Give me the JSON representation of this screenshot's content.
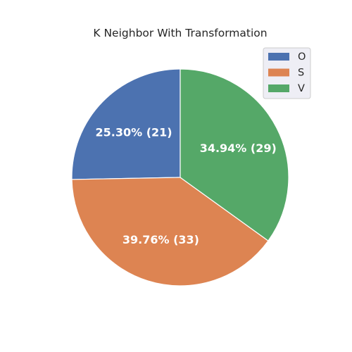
{
  "chart_data": {
    "type": "pie",
    "title": "K Neighbor With Transformation",
    "slices": [
      {
        "name": "O",
        "value": 21,
        "percent_label": "25.30%  (21)",
        "color": "#4c72b0"
      },
      {
        "name": "S",
        "value": 33,
        "percent_label": "39.76%  (33)",
        "color": "#dd8452"
      },
      {
        "name": "V",
        "value": 29,
        "percent_label": "34.94%  (29)",
        "color": "#55a868"
      }
    ],
    "legend": {
      "position": "top-right",
      "entries": [
        "O",
        "S",
        "V"
      ]
    },
    "start_angle_deg": 90,
    "direction": "clockwise"
  }
}
